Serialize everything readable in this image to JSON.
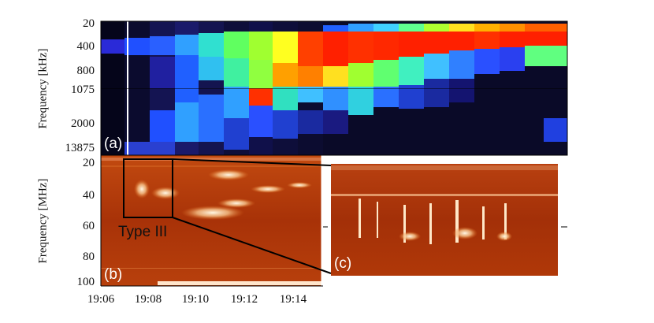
{
  "panel_a": {
    "tag": "(a)",
    "ylabel": "Frequency [kHz]",
    "yticks": [
      "20",
      "400",
      "800",
      "1075",
      "2000",
      "13875"
    ]
  },
  "panel_b": {
    "tag": "(b)",
    "ylabel": "Frequency [MHz]",
    "yticks": [
      "20",
      "40",
      "60",
      "80",
      "100"
    ],
    "xticks": [
      "19:06",
      "19:08",
      "19:10",
      "19:12",
      "19:14"
    ],
    "annotation": "Type III"
  },
  "panel_c": {
    "tag": "(c)"
  },
  "colors": {
    "spectrogram_a_low": "#0a0a30",
    "spectrogram_a_high": "#ff2000",
    "spectrogram_b_base": "#b83a08",
    "spectrogram_b_bright": "#fff4d8"
  }
}
